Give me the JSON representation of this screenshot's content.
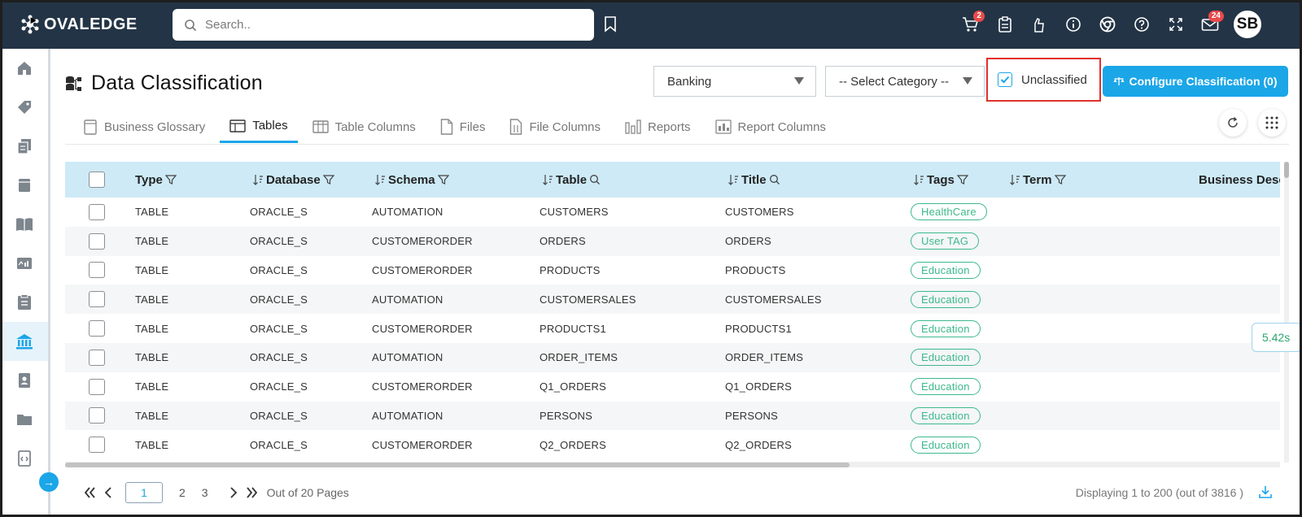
{
  "app": {
    "brand": "OVALEDGE",
    "user_initials": "SB"
  },
  "search": {
    "placeholder": "Search.."
  },
  "notifications": {
    "cart_count": "2",
    "mail_count": "24"
  },
  "page": {
    "title": "Data Classification"
  },
  "filters": {
    "domain_value": "Banking",
    "category_placeholder": "-- Select Category --",
    "unclassified_label": "Unclassified",
    "unclassified_checked": true,
    "configure_label": "Configure Classification (0)"
  },
  "tabs": [
    {
      "label": "Business Glossary",
      "icon": "glossary-icon"
    },
    {
      "label": "Tables",
      "icon": "table-icon",
      "active": true
    },
    {
      "label": "Table Columns",
      "icon": "table-columns-icon"
    },
    {
      "label": "Files",
      "icon": "file-icon"
    },
    {
      "label": "File Columns",
      "icon": "file-columns-icon"
    },
    {
      "label": "Reports",
      "icon": "reports-icon"
    },
    {
      "label": "Report Columns",
      "icon": "report-columns-icon"
    }
  ],
  "table": {
    "columns": [
      "Type",
      "Database",
      "Schema",
      "Table",
      "Title",
      "Tags",
      "Term",
      "Business Description"
    ],
    "rows": [
      {
        "type": "TABLE",
        "database": "ORACLE_S",
        "schema": "AUTOMATION",
        "table": "CUSTOMERS",
        "title": "CUSTOMERS",
        "tag": "HealthCare"
      },
      {
        "type": "TABLE",
        "database": "ORACLE_S",
        "schema": "CUSTOMERORDER",
        "table": "ORDERS",
        "title": "ORDERS",
        "tag": "User TAG"
      },
      {
        "type": "TABLE",
        "database": "ORACLE_S",
        "schema": "CUSTOMERORDER",
        "table": "PRODUCTS",
        "title": "PRODUCTS",
        "tag": "Education"
      },
      {
        "type": "TABLE",
        "database": "ORACLE_S",
        "schema": "AUTOMATION",
        "table": "CUSTOMERSALES",
        "title": "CUSTOMERSALES",
        "tag": "Education"
      },
      {
        "type": "TABLE",
        "database": "ORACLE_S",
        "schema": "CUSTOMERORDER",
        "table": "PRODUCTS1",
        "title": "PRODUCTS1",
        "tag": "Education"
      },
      {
        "type": "TABLE",
        "database": "ORACLE_S",
        "schema": "AUTOMATION",
        "table": "ORDER_ITEMS",
        "title": "ORDER_ITEMS",
        "tag": "Education"
      },
      {
        "type": "TABLE",
        "database": "ORACLE_S",
        "schema": "CUSTOMERORDER",
        "table": "Q1_ORDERS",
        "title": "Q1_ORDERS",
        "tag": "Education"
      },
      {
        "type": "TABLE",
        "database": "ORACLE_S",
        "schema": "AUTOMATION",
        "table": "PERSONS",
        "title": "PERSONS",
        "tag": "Education"
      },
      {
        "type": "TABLE",
        "database": "ORACLE_S",
        "schema": "CUSTOMERORDER",
        "table": "Q2_ORDERS",
        "title": "Q2_ORDERS",
        "tag": "Education"
      }
    ]
  },
  "timer": "5.42s",
  "pagination": {
    "current_page": "1",
    "pages": [
      "2",
      "3"
    ],
    "total_text": "Out of 20 Pages",
    "display_text": "Displaying 1 to 200 (out of 3816 )"
  },
  "colors": {
    "topbar": "#233446",
    "accent": "#1ba6e8",
    "tag": "#3cb98b",
    "header_row": "#cdeaf6",
    "highlight": "#e0312b"
  }
}
